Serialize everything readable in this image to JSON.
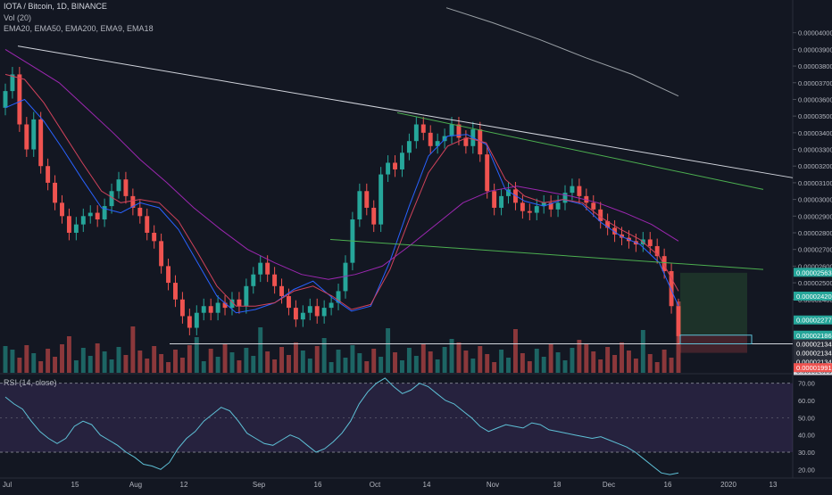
{
  "header": {
    "symbol_line": "IOTA / Bitcoin, 1D, BINANCE",
    "volume_line": "Vol (20)",
    "ema_line": "EMA20, EMA50, EMA200, EMA9, EMA18"
  },
  "rsi": {
    "label": "RSI (14, close)"
  },
  "colors": {
    "background": "#131722",
    "bull": "#26a69a",
    "bear": "#ef5350",
    "ema9": "#2962ff",
    "ema_mid": "#d0425b",
    "ema_long": "#9c27b0",
    "rsi_line": "#5ec0d6",
    "rsi_band": "#7e57c2",
    "trendline_white": "#d1d4dc",
    "trendline_green": "#4caf50"
  },
  "chart_data": {
    "type": "candlestick",
    "title": "IOTA / Bitcoin, 1D, BINANCE",
    "x_ticks": [
      "Jul",
      "15",
      "Aug",
      "12",
      "Sep",
      "16",
      "Oct",
      "14",
      "Nov",
      "18",
      "Dec",
      "16",
      "2020",
      "13"
    ],
    "y_ticks": [
      "0.00004000",
      "0.00003900",
      "0.00003800",
      "0.00003700",
      "0.00003600",
      "0.00003500",
      "0.00003400",
      "0.00003300",
      "0.00003200",
      "0.00003100",
      "0.00003000",
      "0.00002900",
      "0.00002800",
      "0.00002700",
      "0.00002600",
      "0.00002500",
      "0.00002400"
    ],
    "ylim": [
      1.96e-05,
      4.1e-05
    ],
    "price_path": [
      [
        3.55e-05,
        3.65e-05
      ],
      [
        3.65e-05,
        3.75e-05
      ],
      [
        3.75e-05,
        3.45e-05
      ],
      [
        3.45e-05,
        3.3e-05
      ],
      [
        3.3e-05,
        3.48e-05
      ],
      [
        3.48e-05,
        3.2e-05
      ],
      [
        3.2e-05,
        3.1e-05
      ],
      [
        3.1e-05,
        2.98e-05
      ],
      [
        2.98e-05,
        2.9e-05
      ],
      [
        2.9e-05,
        2.8e-05
      ],
      [
        2.8e-05,
        2.85e-05
      ],
      [
        2.85e-05,
        2.9e-05
      ],
      [
        2.9e-05,
        2.92e-05
      ],
      [
        2.92e-05,
        2.88e-05
      ],
      [
        2.88e-05,
        2.96e-05
      ],
      [
        2.96e-05,
        3.05e-05
      ],
      [
        3.05e-05,
        3.12e-05
      ],
      [
        3.12e-05,
        3.02e-05
      ],
      [
        3.02e-05,
        2.95e-05
      ],
      [
        2.95e-05,
        2.9e-05
      ],
      [
        2.9e-05,
        2.8e-05
      ],
      [
        2.8e-05,
        2.75e-05
      ],
      [
        2.75e-05,
        2.6e-05
      ],
      [
        2.6e-05,
        2.5e-05
      ],
      [
        2.5e-05,
        2.4e-05
      ],
      [
        2.4e-05,
        2.3e-05
      ],
      [
        2.3e-05,
        2.23e-05
      ],
      [
        2.23e-05,
        2.32e-05
      ],
      [
        2.32e-05,
        2.36e-05
      ],
      [
        2.36e-05,
        2.32e-05
      ],
      [
        2.32e-05,
        2.38e-05
      ],
      [
        2.38e-05,
        2.35e-05
      ],
      [
        2.35e-05,
        2.4e-05
      ],
      [
        2.4e-05,
        2.36e-05
      ],
      [
        2.36e-05,
        2.48e-05
      ],
      [
        2.48e-05,
        2.55e-05
      ],
      [
        2.55e-05,
        2.62e-05
      ],
      [
        2.62e-05,
        2.55e-05
      ],
      [
        2.55e-05,
        2.48e-05
      ],
      [
        2.48e-05,
        2.42e-05
      ],
      [
        2.42e-05,
        2.35e-05
      ],
      [
        2.35e-05,
        2.28e-05
      ],
      [
        2.28e-05,
        2.32e-05
      ],
      [
        2.32e-05,
        2.36e-05
      ],
      [
        2.36e-05,
        2.3e-05
      ],
      [
        2.3e-05,
        2.35e-05
      ],
      [
        2.35e-05,
        2.38e-05
      ],
      [
        2.38e-05,
        2.45e-05
      ],
      [
        2.45e-05,
        2.62e-05
      ],
      [
        2.62e-05,
        2.88e-05
      ],
      [
        2.88e-05,
        3.05e-05
      ],
      [
        3.05e-05,
        2.95e-05
      ],
      [
        2.95e-05,
        2.85e-05
      ],
      [
        2.85e-05,
        3.15e-05
      ],
      [
        3.15e-05,
        3.22e-05
      ],
      [
        3.22e-05,
        3.18e-05
      ],
      [
        3.18e-05,
        3.28e-05
      ],
      [
        3.28e-05,
        3.35e-05
      ],
      [
        3.35e-05,
        3.45e-05
      ],
      [
        3.45e-05,
        3.4e-05
      ],
      [
        3.4e-05,
        3.32e-05
      ],
      [
        3.32e-05,
        3.35e-05
      ],
      [
        3.35e-05,
        3.38e-05
      ],
      [
        3.38e-05,
        3.45e-05
      ],
      [
        3.45e-05,
        3.37e-05
      ],
      [
        3.37e-05,
        3.32e-05
      ],
      [
        3.32e-05,
        3.42e-05
      ],
      [
        3.42e-05,
        3.27e-05
      ],
      [
        3.27e-05,
        3.05e-05
      ],
      [
        3.05e-05,
        2.95e-05
      ],
      [
        2.95e-05,
        3.02e-05
      ],
      [
        3.02e-05,
        3.06e-05
      ],
      [
        3.06e-05,
        2.98e-05
      ],
      [
        2.98e-05,
        2.93e-05
      ],
      [
        2.93e-05,
        2.92e-05
      ],
      [
        2.92e-05,
        2.96e-05
      ],
      [
        2.96e-05,
        2.98e-05
      ],
      [
        2.98e-05,
        2.94e-05
      ],
      [
        2.94e-05,
        2.98e-05
      ],
      [
        2.98e-05,
        3.04e-05
      ],
      [
        3.04e-05,
        3.08e-05
      ],
      [
        3.08e-05,
        3.02e-05
      ],
      [
        3.02e-05,
        2.98e-05
      ],
      [
        2.98e-05,
        2.94e-05
      ],
      [
        2.94e-05,
        2.87e-05
      ],
      [
        2.87e-05,
        2.83e-05
      ],
      [
        2.83e-05,
        2.79e-05
      ],
      [
        2.79e-05,
        2.77e-05
      ],
      [
        2.77e-05,
        2.75e-05
      ],
      [
        2.75e-05,
        2.73e-05
      ],
      [
        2.73e-05,
        2.76e-05
      ],
      [
        2.76e-05,
        2.72e-05
      ],
      [
        2.72e-05,
        2.66e-05
      ],
      [
        2.66e-05,
        2.57e-05
      ],
      [
        2.57e-05,
        2.36e-05
      ],
      [
        2.36e-05,
        2.18e-05
      ]
    ],
    "ema_lines": [
      {
        "name": "EMA9",
        "color": "#2962ff",
        "values": [
          3.55e-05,
          3.6e-05,
          3.47e-05,
          3.3e-05,
          3.12e-05,
          2.95e-05,
          2.92e-05,
          2.98e-05,
          2.95e-05,
          2.82e-05,
          2.62e-05,
          2.42e-05,
          2.32e-05,
          2.34e-05,
          2.38e-05,
          2.46e-05,
          2.51e-05,
          2.41e-05,
          2.33e-05,
          2.36e-05,
          2.63e-05,
          2.96e-05,
          3.26e-05,
          3.38e-05,
          3.39e-05,
          3.33e-05,
          3.06e-05,
          2.99e-05,
          2.96e-05,
          3e-05,
          2.97e-05,
          2.86e-05,
          2.78e-05,
          2.73e-05,
          2.62e-05,
          2.36e-05
        ]
      },
      {
        "name": "EMA18",
        "color": "#d0425b",
        "values": [
          3.75e-05,
          3.72e-05,
          3.58e-05,
          3.4e-05,
          3.22e-05,
          3.05e-05,
          2.98e-05,
          3e-05,
          2.98e-05,
          2.87e-05,
          2.68e-05,
          2.48e-05,
          2.36e-05,
          2.36e-05,
          2.38e-05,
          2.45e-05,
          2.48e-05,
          2.42e-05,
          2.34e-05,
          2.37e-05,
          2.58e-05,
          2.88e-05,
          3.16e-05,
          3.32e-05,
          3.37e-05,
          3.34e-05,
          3.12e-05,
          3.02e-05,
          2.98e-05,
          3e-05,
          2.98e-05,
          2.89e-05,
          2.82e-05,
          2.76e-05,
          2.66e-05,
          2.45e-05
        ]
      },
      {
        "name": "EMA50",
        "color": "#9c27b0",
        "values": [
          3.9e-05,
          3.8e-05,
          3.7e-05,
          3.55e-05,
          3.4e-05,
          3.24e-05,
          3.1e-05,
          2.95e-05,
          2.82e-05,
          2.7e-05,
          2.62e-05,
          2.55e-05,
          2.52e-05,
          2.55e-05,
          2.6e-05,
          2.72e-05,
          2.85e-05,
          2.98e-05,
          3.05e-05,
          3.08e-05,
          3.05e-05,
          3.02e-05,
          2.98e-05,
          2.92e-05,
          2.85e-05,
          2.75e-05
        ]
      },
      {
        "name": "EMA200",
        "color": "#9aa0a6",
        "values": [
          4.15e-05,
          4.06e-05,
          3.96e-05,
          3.85e-05,
          3.75e-05,
          3.62e-05
        ]
      }
    ],
    "annotations": [
      {
        "label": "0.00002563",
        "kind": "target"
      },
      {
        "label": "0.00002420",
        "kind": "target"
      },
      {
        "label": "0.00002277",
        "kind": "target"
      },
      {
        "label": "0.00002186",
        "kind": "current"
      },
      {
        "label": "0.00002134",
        "kind": "level"
      },
      {
        "label": "0.00002134",
        "kind": "level"
      },
      {
        "label": "0.00002134",
        "kind": "level"
      },
      {
        "label": "0.00002099",
        "kind": "level"
      },
      {
        "label": "0.00001991",
        "kind": "stop"
      }
    ],
    "volume_ticks": [
      "0",
      "1"
    ],
    "rsi_ticks": [
      "70.00",
      "60.00",
      "50.00",
      "40.00",
      "30.00",
      "20.00"
    ],
    "rsi_band": [
      30,
      70
    ],
    "rsi_values": [
      62,
      58,
      55,
      48,
      42,
      38,
      35,
      38,
      45,
      48,
      46,
      40,
      37,
      34,
      30,
      27,
      23,
      22,
      20,
      24,
      32,
      38,
      42,
      48,
      52,
      56,
      54,
      48,
      41,
      38,
      35,
      34,
      37,
      40,
      38,
      34,
      30,
      32,
      36,
      41,
      48,
      58,
      65,
      70,
      73,
      68,
      64,
      66,
      70,
      68,
      64,
      60,
      58,
      54,
      50,
      45,
      42,
      44,
      46,
      45,
      44,
      47,
      46,
      43,
      42,
      41,
      40,
      39,
      38,
      39,
      37,
      35,
      33,
      30,
      26,
      22,
      18,
      17,
      18
    ]
  }
}
